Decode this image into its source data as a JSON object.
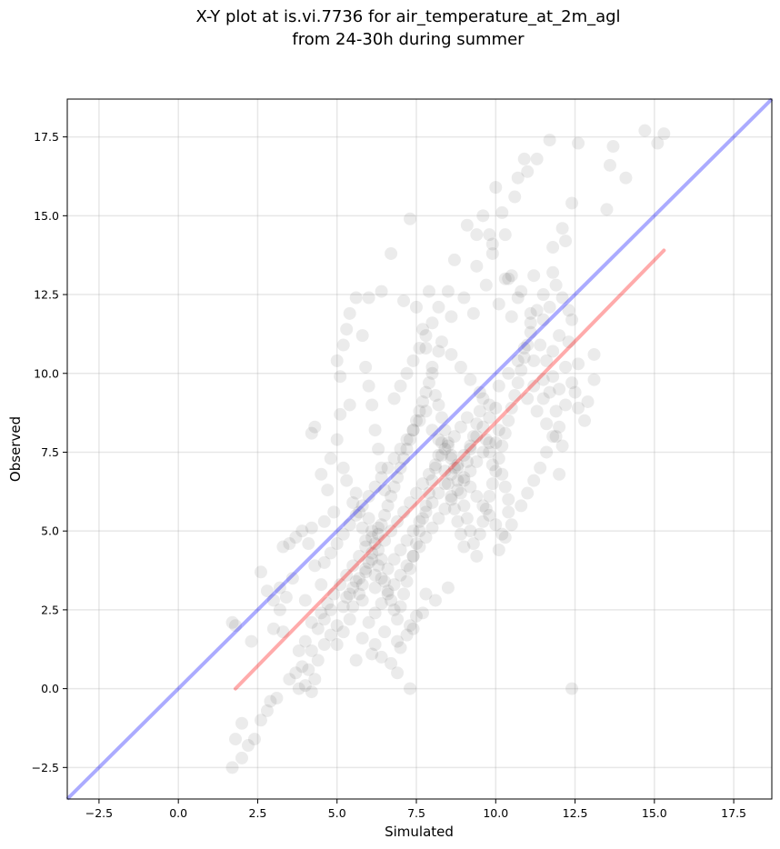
{
  "chart_data": {
    "type": "scatter",
    "title_line1": "X-Y plot at is.vi.7736 for air_temperature_at_2m_agl",
    "title_line2": "from 24-30h during summer",
    "xlabel": "Simulated",
    "ylabel": "Observed",
    "xlim": [
      -3.5,
      18.7
    ],
    "ylim": [
      -3.5,
      18.7
    ],
    "x_ticks": [
      -2.5,
      0.0,
      2.5,
      5.0,
      7.5,
      10.0,
      12.5,
      15.0,
      17.5
    ],
    "y_ticks": [
      -2.5,
      0.0,
      2.5,
      5.0,
      7.5,
      10.0,
      12.5,
      15.0,
      17.5
    ],
    "x_tick_labels": [
      "−2.5",
      "0.0",
      "2.5",
      "5.0",
      "7.5",
      "10.0",
      "12.5",
      "15.0",
      "17.5"
    ],
    "y_tick_labels": [
      "−2.5",
      "0.0",
      "2.5",
      "5.0",
      "7.5",
      "10.0",
      "12.5",
      "15.0",
      "17.5"
    ],
    "grid": true,
    "point_color": "#000000",
    "point_alpha": 0.08,
    "identity_line": {
      "color": "#0000ff",
      "alpha": 0.33,
      "from": [
        -3.5,
        -3.5
      ],
      "to": [
        18.7,
        18.7
      ]
    },
    "fit_line": {
      "color": "#ff0000",
      "alpha": 0.33,
      "from": [
        1.8,
        0.0
      ],
      "to": [
        15.3,
        13.9
      ]
    },
    "points": [
      [
        1.7,
        -2.5
      ],
      [
        1.8,
        -1.6
      ],
      [
        2.0,
        -2.2
      ],
      [
        2.2,
        -1.8
      ],
      [
        2.4,
        -1.6
      ],
      [
        2.0,
        -1.1
      ],
      [
        2.6,
        -1.0
      ],
      [
        2.8,
        -0.7
      ],
      [
        3.1,
        -0.3
      ],
      [
        2.9,
        -0.4
      ],
      [
        1.7,
        2.1
      ],
      [
        1.8,
        2.0
      ],
      [
        2.3,
        1.5
      ],
      [
        2.6,
        3.7
      ],
      [
        2.8,
        3.1
      ],
      [
        3.0,
        2.8
      ],
      [
        3.2,
        2.5
      ],
      [
        3.3,
        4.5
      ],
      [
        3.5,
        4.6
      ],
      [
        3.6,
        3.5
      ],
      [
        3.2,
        3.2
      ],
      [
        3.4,
        2.9
      ],
      [
        3.0,
        1.9
      ],
      [
        3.3,
        1.8
      ],
      [
        3.8,
        1.2
      ],
      [
        3.9,
        0.7
      ],
      [
        3.7,
        0.5
      ],
      [
        3.5,
        0.3
      ],
      [
        4.0,
        0.1
      ],
      [
        4.1,
        0.6
      ],
      [
        3.8,
        0.0
      ],
      [
        4.2,
        -0.1
      ],
      [
        4.3,
        0.3
      ],
      [
        4.4,
        0.9
      ],
      [
        4.6,
        1.4
      ],
      [
        4.8,
        1.7
      ],
      [
        4.2,
        2.1
      ],
      [
        4.0,
        2.8
      ],
      [
        4.5,
        3.3
      ],
      [
        4.3,
        3.9
      ],
      [
        4.1,
        4.6
      ],
      [
        4.3,
        8.3
      ],
      [
        4.2,
        8.1
      ],
      [
        4.5,
        6.8
      ],
      [
        4.7,
        6.3
      ],
      [
        4.9,
        5.6
      ],
      [
        4.2,
        5.1
      ],
      [
        4.6,
        5.3
      ],
      [
        3.9,
        5.0
      ],
      [
        3.7,
        4.8
      ],
      [
        4.8,
        7.3
      ],
      [
        5.0,
        7.9
      ],
      [
        5.1,
        8.7
      ],
      [
        5.2,
        7.0
      ],
      [
        5.3,
        6.6
      ],
      [
        5.4,
        9.0
      ],
      [
        5.1,
        9.9
      ],
      [
        5.0,
        10.4
      ],
      [
        5.2,
        10.9
      ],
      [
        5.3,
        11.4
      ],
      [
        5.4,
        11.9
      ],
      [
        5.6,
        12.4
      ],
      [
        5.8,
        11.2
      ],
      [
        5.9,
        10.2
      ],
      [
        6.0,
        9.6
      ],
      [
        6.1,
        9.0
      ],
      [
        6.2,
        8.2
      ],
      [
        6.3,
        7.6
      ],
      [
        6.4,
        7.0
      ],
      [
        6.5,
        6.3
      ],
      [
        6.0,
        12.4
      ],
      [
        6.4,
        12.6
      ],
      [
        6.7,
        13.8
      ],
      [
        7.1,
        12.3
      ],
      [
        7.3,
        14.9
      ],
      [
        7.5,
        12.1
      ],
      [
        7.7,
        11.4
      ],
      [
        7.8,
        10.8
      ],
      [
        8.0,
        10.2
      ],
      [
        8.2,
        10.7
      ],
      [
        8.5,
        12.6
      ],
      [
        8.7,
        13.6
      ],
      [
        9.1,
        14.7
      ],
      [
        9.4,
        14.4
      ],
      [
        9.6,
        15.0
      ],
      [
        9.8,
        14.4
      ],
      [
        9.9,
        14.1
      ],
      [
        10.0,
        15.9
      ],
      [
        10.2,
        15.1
      ],
      [
        10.3,
        14.4
      ],
      [
        10.4,
        13.0
      ],
      [
        10.5,
        13.1
      ],
      [
        10.6,
        15.6
      ],
      [
        10.7,
        16.2
      ],
      [
        10.9,
        16.8
      ],
      [
        11.0,
        16.4
      ],
      [
        11.3,
        16.8
      ],
      [
        11.7,
        17.4
      ],
      [
        12.4,
        15.4
      ],
      [
        12.6,
        17.3
      ],
      [
        13.5,
        15.2
      ],
      [
        13.6,
        16.6
      ],
      [
        13.7,
        17.2
      ],
      [
        14.1,
        16.2
      ],
      [
        14.7,
        17.7
      ],
      [
        15.1,
        17.3
      ],
      [
        15.3,
        17.6
      ],
      [
        12.3,
        11.0
      ],
      [
        12.6,
        10.3
      ],
      [
        13.1,
        10.6
      ],
      [
        13.1,
        9.8
      ],
      [
        12.9,
        9.1
      ],
      [
        12.4,
        11.7
      ],
      [
        12.3,
        12.0
      ],
      [
        12.1,
        12.4
      ],
      [
        11.9,
        12.8
      ],
      [
        11.7,
        12.1
      ],
      [
        11.5,
        11.7
      ],
      [
        11.3,
        12.0
      ],
      [
        11.1,
        11.6
      ],
      [
        11.4,
        10.9
      ],
      [
        11.6,
        10.4
      ],
      [
        11.8,
        9.9
      ],
      [
        12.0,
        9.5
      ],
      [
        12.2,
        9.0
      ],
      [
        12.0,
        8.3
      ],
      [
        11.8,
        8.0
      ],
      [
        11.6,
        7.5
      ],
      [
        11.4,
        7.0
      ],
      [
        11.2,
        6.6
      ],
      [
        11.0,
        6.2
      ],
      [
        10.8,
        5.8
      ],
      [
        10.5,
        5.2
      ],
      [
        10.3,
        4.8
      ],
      [
        10.1,
        4.4
      ],
      [
        12.0,
        6.8
      ],
      [
        12.1,
        7.7
      ],
      [
        11.9,
        8.8
      ],
      [
        11.7,
        9.4
      ],
      [
        11.5,
        9.8
      ],
      [
        12.4,
        0.0
      ],
      [
        7.3,
        0.0
      ],
      [
        5.6,
        0.9
      ],
      [
        6.1,
        1.1
      ],
      [
        6.4,
        1.0
      ],
      [
        6.7,
        0.8
      ],
      [
        6.9,
        0.5
      ],
      [
        7.0,
        1.3
      ],
      [
        7.2,
        1.7
      ],
      [
        7.4,
        1.9
      ],
      [
        5.0,
        1.4
      ],
      [
        5.2,
        1.8
      ],
      [
        5.4,
        2.2
      ],
      [
        5.5,
        2.6
      ],
      [
        5.7,
        3.0
      ],
      [
        5.8,
        3.3
      ],
      [
        5.9,
        3.7
      ],
      [
        6.0,
        4.0
      ],
      [
        6.1,
        4.3
      ],
      [
        6.2,
        4.6
      ],
      [
        6.3,
        4.9
      ],
      [
        6.4,
        5.2
      ],
      [
        6.5,
        5.5
      ],
      [
        6.6,
        5.8
      ],
      [
        6.7,
        6.1
      ],
      [
        6.8,
        6.4
      ],
      [
        6.9,
        6.7
      ],
      [
        7.0,
        7.0
      ],
      [
        7.1,
        7.3
      ],
      [
        7.2,
        7.6
      ],
      [
        7.3,
        7.9
      ],
      [
        7.4,
        8.2
      ],
      [
        7.5,
        8.5
      ],
      [
        7.6,
        8.8
      ],
      [
        7.7,
        9.1
      ],
      [
        7.8,
        9.4
      ],
      [
        7.9,
        9.7
      ],
      [
        8.0,
        10.0
      ],
      [
        8.1,
        9.3
      ],
      [
        8.2,
        9.0
      ],
      [
        8.3,
        8.6
      ],
      [
        8.4,
        8.2
      ],
      [
        8.5,
        7.8
      ],
      [
        8.6,
        7.4
      ],
      [
        8.7,
        7.0
      ],
      [
        8.8,
        6.6
      ],
      [
        8.9,
        6.2
      ],
      [
        9.0,
        5.8
      ],
      [
        9.1,
        5.4
      ],
      [
        9.2,
        5.0
      ],
      [
        9.3,
        4.6
      ],
      [
        9.4,
        4.2
      ],
      [
        9.5,
        4.9
      ],
      [
        9.6,
        5.3
      ],
      [
        9.7,
        5.7
      ],
      [
        9.8,
        6.1
      ],
      [
        9.9,
        6.5
      ],
      [
        10.0,
        6.9
      ],
      [
        10.1,
        7.3
      ],
      [
        10.2,
        7.7
      ],
      [
        10.3,
        8.1
      ],
      [
        10.4,
        8.5
      ],
      [
        10.5,
        8.9
      ],
      [
        10.6,
        9.3
      ],
      [
        10.7,
        9.7
      ],
      [
        10.8,
        10.1
      ],
      [
        10.9,
        10.5
      ],
      [
        11.0,
        10.9
      ],
      [
        11.1,
        11.3
      ],
      [
        11.2,
        10.4
      ],
      [
        5.5,
        5.9
      ],
      [
        5.6,
        6.2
      ],
      [
        5.7,
        5.6
      ],
      [
        5.8,
        5.1
      ],
      [
        5.9,
        4.7
      ],
      [
        6.0,
        5.4
      ],
      [
        6.1,
        5.0
      ],
      [
        6.2,
        3.6
      ],
      [
        6.3,
        3.9
      ],
      [
        6.4,
        4.1
      ],
      [
        6.5,
        3.4
      ],
      [
        6.6,
        3.1
      ],
      [
        6.7,
        2.8
      ],
      [
        6.8,
        2.5
      ],
      [
        6.9,
        2.2
      ],
      [
        7.0,
        2.6
      ],
      [
        7.1,
        3.0
      ],
      [
        7.2,
        3.4
      ],
      [
        7.3,
        3.8
      ],
      [
        7.4,
        4.2
      ],
      [
        7.5,
        4.6
      ],
      [
        7.6,
        5.0
      ],
      [
        7.7,
        5.4
      ],
      [
        7.8,
        5.8
      ],
      [
        7.9,
        6.2
      ],
      [
        8.0,
        6.6
      ],
      [
        8.1,
        7.0
      ],
      [
        8.2,
        7.4
      ],
      [
        8.3,
        7.8
      ],
      [
        8.4,
        6.9
      ],
      [
        8.5,
        6.5
      ],
      [
        8.6,
        6.1
      ],
      [
        8.7,
        5.7
      ],
      [
        8.8,
        5.3
      ],
      [
        8.9,
        4.9
      ],
      [
        9.0,
        4.5
      ],
      [
        9.1,
        7.2
      ],
      [
        9.2,
        7.6
      ],
      [
        9.3,
        8.0
      ],
      [
        9.4,
        8.4
      ],
      [
        9.5,
        8.8
      ],
      [
        9.6,
        9.2
      ],
      [
        9.7,
        7.9
      ],
      [
        9.8,
        7.5
      ],
      [
        9.9,
        7.1
      ],
      [
        10.0,
        7.8
      ],
      [
        10.1,
        8.2
      ],
      [
        10.2,
        6.8
      ],
      [
        10.3,
        6.4
      ],
      [
        10.4,
        6.0
      ],
      [
        4.5,
        2.4
      ],
      [
        4.7,
        2.7
      ],
      [
        4.9,
        3.0
      ],
      [
        5.1,
        3.3
      ],
      [
        5.3,
        3.6
      ],
      [
        5.5,
        3.9
      ],
      [
        5.7,
        4.2
      ],
      [
        5.9,
        4.5
      ],
      [
        6.1,
        4.8
      ],
      [
        6.3,
        5.1
      ],
      [
        4.6,
        4.0
      ],
      [
        4.8,
        4.3
      ],
      [
        5.0,
        4.6
      ],
      [
        5.2,
        4.9
      ],
      [
        5.4,
        5.2
      ],
      [
        5.6,
        5.5
      ],
      [
        5.8,
        5.8
      ],
      [
        6.0,
        6.1
      ],
      [
        6.2,
        6.4
      ],
      [
        6.4,
        6.7
      ],
      [
        6.6,
        7.0
      ],
      [
        6.8,
        7.3
      ],
      [
        7.0,
        7.6
      ],
      [
        7.2,
        7.9
      ],
      [
        7.4,
        8.2
      ],
      [
        7.6,
        8.5
      ],
      [
        7.8,
        8.8
      ],
      [
        8.0,
        8.2
      ],
      [
        8.2,
        7.9
      ],
      [
        8.4,
        7.6
      ],
      [
        8.6,
        7.3
      ],
      [
        8.8,
        7.0
      ],
      [
        9.0,
        6.7
      ],
      [
        9.2,
        6.4
      ],
      [
        9.4,
        6.1
      ],
      [
        9.6,
        5.8
      ],
      [
        9.8,
        5.5
      ],
      [
        10.0,
        5.2
      ],
      [
        10.2,
        4.9
      ],
      [
        10.4,
        5.6
      ],
      [
        6.2,
        3.2
      ],
      [
        6.4,
        3.5
      ],
      [
        6.6,
        3.8
      ],
      [
        6.8,
        4.1
      ],
      [
        7.0,
        4.4
      ],
      [
        7.2,
        4.7
      ],
      [
        7.4,
        5.0
      ],
      [
        7.6,
        5.3
      ],
      [
        7.8,
        5.6
      ],
      [
        8.0,
        5.9
      ],
      [
        8.2,
        6.2
      ],
      [
        8.4,
        6.5
      ],
      [
        8.6,
        6.8
      ],
      [
        8.8,
        7.1
      ],
      [
        9.0,
        7.4
      ],
      [
        9.2,
        7.7
      ],
      [
        9.4,
        8.0
      ],
      [
        9.6,
        8.3
      ],
      [
        9.8,
        8.6
      ],
      [
        10.0,
        8.9
      ],
      [
        5.3,
        2.9
      ],
      [
        5.5,
        3.2
      ],
      [
        5.7,
        3.5
      ],
      [
        5.9,
        3.8
      ],
      [
        6.1,
        4.1
      ],
      [
        6.3,
        4.4
      ],
      [
        6.5,
        4.7
      ],
      [
        6.7,
        5.0
      ],
      [
        6.9,
        5.3
      ],
      [
        7.1,
        5.6
      ],
      [
        7.3,
        5.9
      ],
      [
        7.5,
        6.2
      ],
      [
        7.7,
        6.5
      ],
      [
        7.9,
        6.8
      ],
      [
        8.1,
        7.1
      ],
      [
        8.3,
        7.4
      ],
      [
        8.5,
        7.7
      ],
      [
        8.7,
        8.0
      ],
      [
        8.9,
        8.3
      ],
      [
        9.1,
        8.6
      ],
      [
        6.0,
        2.1
      ],
      [
        6.2,
        2.4
      ],
      [
        6.4,
        2.7
      ],
      [
        6.6,
        3.0
      ],
      [
        6.8,
        3.3
      ],
      [
        7.0,
        3.6
      ],
      [
        7.2,
        3.9
      ],
      [
        7.4,
        4.2
      ],
      [
        7.6,
        4.5
      ],
      [
        7.8,
        4.8
      ],
      [
        8.0,
        5.1
      ],
      [
        8.2,
        5.4
      ],
      [
        8.4,
        5.7
      ],
      [
        8.6,
        6.0
      ],
      [
        8.8,
        6.3
      ],
      [
        9.0,
        6.6
      ],
      [
        9.2,
        6.9
      ],
      [
        9.4,
        7.2
      ],
      [
        9.6,
        7.5
      ],
      [
        9.8,
        7.8
      ],
      [
        4.0,
        1.5
      ],
      [
        4.2,
        1.2
      ],
      [
        4.4,
        1.9
      ],
      [
        4.6,
        2.2
      ],
      [
        4.8,
        2.5
      ],
      [
        5.0,
        2.0
      ],
      [
        5.2,
        2.6
      ],
      [
        5.4,
        3.0
      ],
      [
        5.6,
        3.4
      ],
      [
        5.8,
        2.8
      ],
      [
        6.8,
        9.2
      ],
      [
        7.0,
        9.6
      ],
      [
        7.2,
        10.0
      ],
      [
        7.4,
        10.4
      ],
      [
        7.6,
        10.8
      ],
      [
        7.8,
        11.2
      ],
      [
        8.0,
        11.6
      ],
      [
        8.3,
        11.0
      ],
      [
        8.6,
        10.6
      ],
      [
        8.9,
        10.2
      ],
      [
        9.2,
        9.8
      ],
      [
        9.5,
        9.4
      ],
      [
        9.8,
        9.0
      ],
      [
        10.1,
        9.6
      ],
      [
        10.4,
        10.0
      ],
      [
        10.7,
        10.4
      ],
      [
        11.0,
        9.2
      ],
      [
        11.3,
        8.8
      ],
      [
        11.6,
        8.4
      ],
      [
        11.9,
        8.0
      ],
      [
        7.9,
        12.6
      ],
      [
        8.2,
        12.1
      ],
      [
        8.6,
        11.8
      ],
      [
        9.0,
        12.4
      ],
      [
        9.3,
        11.9
      ],
      [
        9.7,
        12.8
      ],
      [
        10.1,
        12.2
      ],
      [
        10.5,
        11.8
      ],
      [
        10.8,
        12.6
      ],
      [
        11.2,
        13.1
      ],
      [
        9.4,
        13.4
      ],
      [
        9.9,
        13.8
      ],
      [
        10.3,
        13.0
      ],
      [
        10.7,
        12.4
      ],
      [
        11.1,
        11.9
      ],
      [
        11.5,
        12.5
      ],
      [
        11.8,
        13.2
      ],
      [
        12.2,
        14.2
      ],
      [
        12.1,
        14.6
      ],
      [
        11.8,
        14.0
      ],
      [
        10.9,
        10.8
      ],
      [
        11.2,
        9.6
      ],
      [
        11.5,
        9.2
      ],
      [
        11.8,
        10.7
      ],
      [
        12.0,
        11.2
      ],
      [
        12.2,
        10.2
      ],
      [
        12.4,
        9.7
      ],
      [
        12.6,
        8.9
      ],
      [
        12.8,
        8.5
      ],
      [
        12.5,
        9.4
      ],
      [
        6.9,
        1.5
      ],
      [
        7.3,
        2.0
      ],
      [
        7.7,
        2.4
      ],
      [
        8.1,
        2.8
      ],
      [
        8.5,
        3.2
      ],
      [
        7.8,
        3.0
      ],
      [
        7.5,
        2.3
      ],
      [
        6.5,
        1.8
      ],
      [
        6.2,
        1.4
      ],
      [
        5.8,
        1.6
      ]
    ]
  }
}
